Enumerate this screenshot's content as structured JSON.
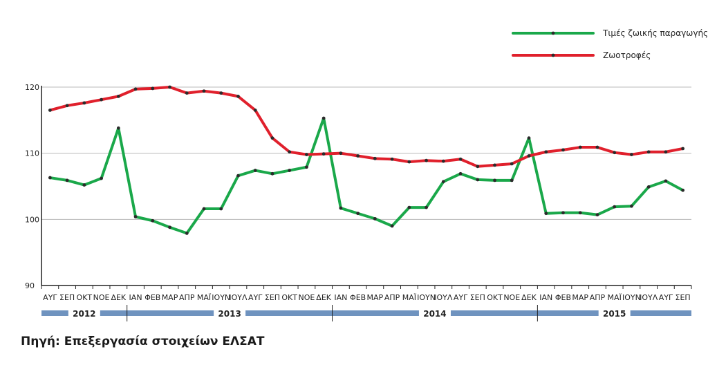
{
  "source": "Πηγή: Επεξεργασία στοιχείων ΕΛΣΑΤ",
  "chart_data": {
    "type": "line",
    "title": "",
    "xlabel": "",
    "ylabel": "",
    "ylim": [
      90,
      120
    ],
    "yticks": [
      90,
      100,
      110,
      120
    ],
    "grid": true,
    "legend_position": "top-right",
    "categories": [
      "ΑΥΓ",
      "ΣΕΠ",
      "ΟΚΤ",
      "ΝΟΕ",
      "ΔΕΚ",
      "ΙΑΝ",
      "ΦΕΒ",
      "ΜΑΡ",
      "ΑΠΡ",
      "ΜΑΪ",
      "ΙΟΥΝ",
      "ΙΟΥΛ",
      "ΑΥΓ",
      "ΣΕΠ",
      "ΟΚΤ",
      "ΝΟΕ",
      "ΔΕΚ",
      "ΙΑΝ",
      "ΦΕΒ",
      "ΜΑΡ",
      "ΑΠΡ",
      "ΜΑΪ",
      "ΙΟΥΝ",
      "ΙΟΥΛ",
      "ΑΥΓ",
      "ΣΕΠ",
      "ΟΚΤ",
      "ΝΟΕ",
      "ΔΕΚ",
      "ΙΑΝ",
      "ΦΕΒ",
      "ΜΑΡ",
      "ΑΠΡ",
      "ΜΑΪ",
      "ΙΟΥΝ",
      "ΙΟΥΛ",
      "ΑΥΓ",
      "ΣΕΠ"
    ],
    "years": [
      {
        "label": "2012",
        "from": 0,
        "to": 4
      },
      {
        "label": "2013",
        "from": 5,
        "to": 16
      },
      {
        "label": "2014",
        "from": 17,
        "to": 28
      },
      {
        "label": "2015",
        "from": 29,
        "to": 37
      }
    ],
    "series": [
      {
        "name": "Τιμές ζωικής παραγωγής",
        "color": "#1aa84a",
        "values": [
          106.3,
          105.9,
          105.2,
          106.2,
          113.8,
          100.4,
          99.8,
          98.8,
          97.9,
          101.6,
          101.6,
          106.6,
          107.4,
          106.9,
          107.4,
          107.9,
          115.3,
          101.7,
          100.9,
          100.1,
          99.0,
          101.8,
          101.8,
          105.7,
          106.9,
          106.0,
          105.9,
          105.9,
          112.3,
          100.9,
          101.0,
          101.0,
          100.7,
          101.9,
          102.0,
          104.9,
          105.8,
          104.4
        ]
      },
      {
        "name": "Ζωοτροφές",
        "color": "#e0202c",
        "values": [
          116.5,
          117.2,
          117.6,
          118.1,
          118.6,
          119.7,
          119.8,
          120.0,
          119.1,
          119.4,
          119.1,
          118.6,
          116.5,
          112.3,
          110.2,
          109.8,
          109.9,
          110.0,
          109.6,
          109.2,
          109.1,
          108.7,
          108.9,
          108.8,
          109.1,
          108.0,
          108.2,
          108.4,
          109.6,
          110.2,
          110.5,
          110.9,
          110.9,
          110.1,
          109.8,
          110.2,
          110.2,
          110.7
        ]
      }
    ]
  }
}
